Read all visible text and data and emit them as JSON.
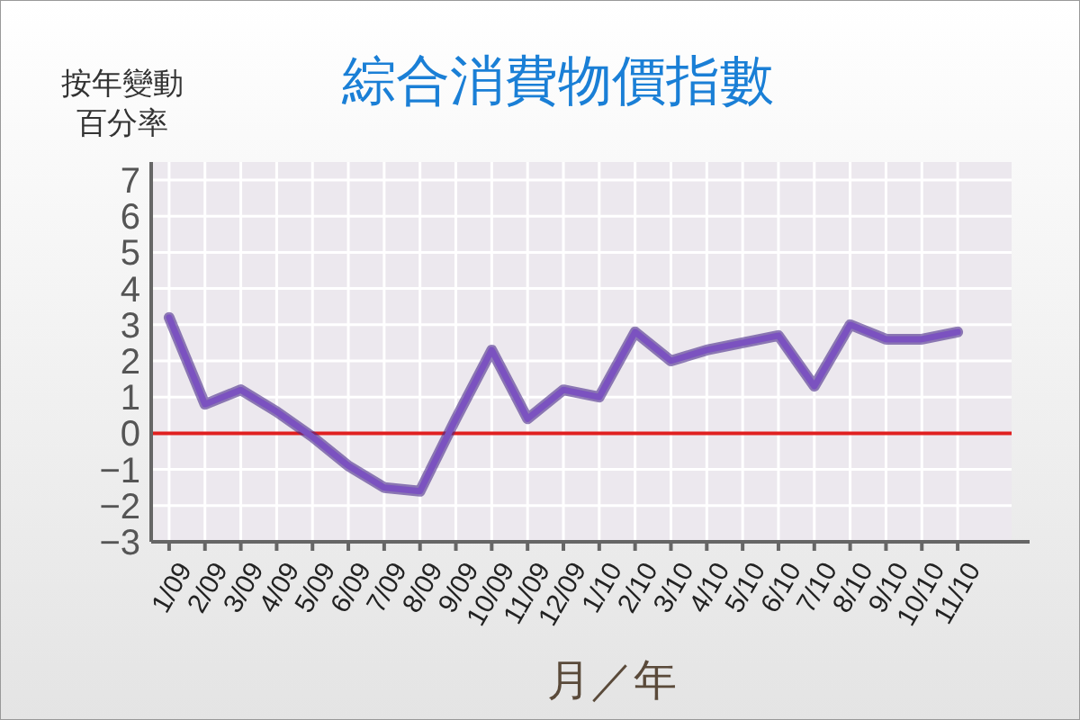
{
  "chart_data": {
    "type": "line",
    "title": "綜合消費物價指數",
    "xlabel": "月／年",
    "ylabel": "按年變動百分率",
    "categories": [
      "1/09",
      "2/09",
      "3/09",
      "4/09",
      "5/09",
      "6/09",
      "7/09",
      "8/09",
      "9/09",
      "10/09",
      "11/09",
      "12/09",
      "1/10",
      "2/10",
      "3/10",
      "4/10",
      "5/10",
      "6/10",
      "7/10",
      "8/10",
      "9/10",
      "10/10",
      "11/10"
    ],
    "series": [
      {
        "color": "#7b52c0",
        "values": [
          3.2,
          0.8,
          1.2,
          0.6,
          -0.1,
          -0.9,
          -1.5,
          -1.6,
          0.4,
          2.3,
          0.4,
          1.2,
          1.0,
          2.8,
          2.0,
          2.3,
          2.5,
          2.7,
          1.3,
          3.0,
          2.6,
          2.6,
          2.8
        ]
      }
    ],
    "ylim": [
      -3,
      7
    ],
    "yticks": [
      -3,
      -2,
      -1,
      0,
      1,
      2,
      3,
      4,
      5,
      6,
      7
    ],
    "grid": true,
    "ref_lines": [
      {
        "axis": "y",
        "value": 0,
        "color": "#e02020"
      }
    ]
  }
}
